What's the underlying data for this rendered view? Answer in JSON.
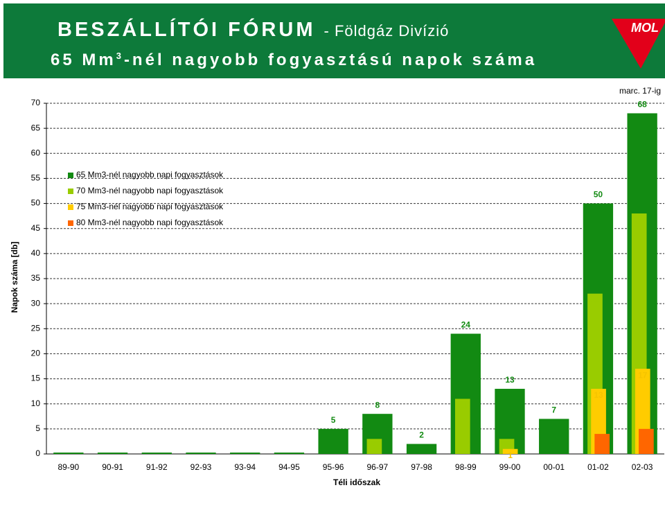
{
  "header": {
    "title": "BESZÁLLÍTÓI FÓRUM",
    "division": "- Földgáz Divízió",
    "subtitle_start": "65 Mm",
    "subtitle_sup": "3",
    "subtitle_end": "-nél nagyobb fogyasztású napok száma",
    "logo": "MOL"
  },
  "chart_data": {
    "type": "bar",
    "y_label": "Napok száma [db]",
    "x_label": "Téli időszak",
    "annotation": "marc. 17-ig",
    "categories": [
      "89-90",
      "90-91",
      "91-92",
      "92-93",
      "93-94",
      "94-95",
      "95-96",
      "96-97",
      "97-98",
      "98-99",
      "99-00",
      "00-01",
      "01-02",
      "02-03"
    ],
    "series": [
      {
        "name": "65 Mm3-nél nagyobb napi fogyasztások",
        "color": "#128a12",
        "label_color": "#128a12",
        "values": [
          0,
          0,
          0,
          0,
          0,
          0,
          5,
          8,
          2,
          24,
          13,
          7,
          50,
          68
        ]
      },
      {
        "name": "70 Mm3-nél nagyobb napi fogyasztások",
        "color": "#99cc00",
        "label_color": "#99cc00",
        "values": [
          null,
          null,
          null,
          null,
          null,
          null,
          null,
          3,
          null,
          11,
          3,
          null,
          32,
          48
        ]
      },
      {
        "name": "75 Mm3-nél nagyobb napi fogyasztások",
        "color": "#ffcc00",
        "label_color": "#f5c400",
        "values": [
          null,
          null,
          null,
          null,
          null,
          null,
          null,
          null,
          null,
          null,
          1,
          null,
          13,
          17
        ]
      },
      {
        "name": "80 Mm3-nél nagyobb napi fogyasztások",
        "color": "#ff6600",
        "label_color": "#ff6600",
        "values": [
          null,
          null,
          null,
          null,
          null,
          null,
          null,
          null,
          null,
          null,
          null,
          null,
          4,
          5
        ]
      }
    ],
    "ylim": [
      0,
      70
    ],
    "yticks": [
      0,
      5,
      10,
      15,
      20,
      25,
      30,
      35,
      40,
      45,
      50,
      55,
      60,
      65,
      70
    ],
    "grid": true
  }
}
